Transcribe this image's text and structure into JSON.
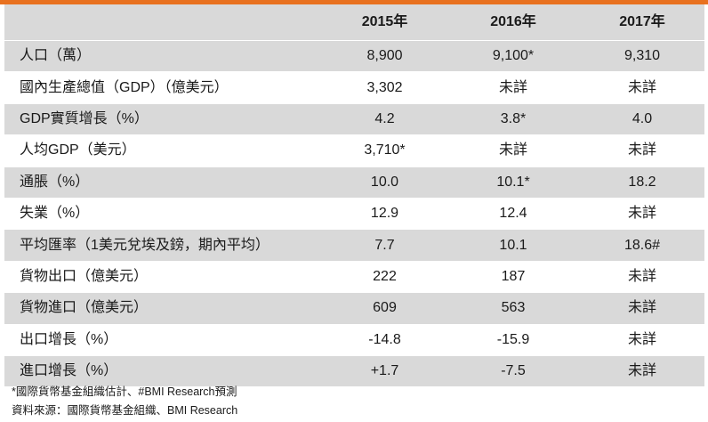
{
  "header": {
    "col1": "2015年",
    "col2": "2016年",
    "col3": "2017年"
  },
  "rows": [
    {
      "label": "人口（萬）",
      "v2015": "8,900",
      "v2016": "9,100*",
      "v2017": "9,310"
    },
    {
      "label": "國內生產總值（GDP）（億美元）",
      "v2015": "3,302",
      "v2016": "未詳",
      "v2017": "未詳"
    },
    {
      "label": "GDP實質增長（%）",
      "v2015": "4.2",
      "v2016": "3.8*",
      "v2017": "4.0"
    },
    {
      "label": "人均GDP（美元）",
      "v2015": "3,710*",
      "v2016": "未詳",
      "v2017": "未詳"
    },
    {
      "label": "通脹（%）",
      "v2015": "10.0",
      "v2016": "10.1*",
      "v2017": "18.2"
    },
    {
      "label": "失業（%）",
      "v2015": "12.9",
      "v2016": "12.4",
      "v2017": "未詳"
    },
    {
      "label": "平均匯率（1美元兌埃及鎊，期內平均）",
      "v2015": "7.7",
      "v2016": "10.1",
      "v2017": "18.6#"
    },
    {
      "label": "貨物出口（億美元）",
      "v2015": "222",
      "v2016": "187",
      "v2017": "未詳"
    },
    {
      "label": "貨物進口（億美元）",
      "v2015": "609",
      "v2016": "563",
      "v2017": "未詳"
    },
    {
      "label": "出口增長（%）",
      "v2015": "-14.8",
      "v2016": "-15.9",
      "v2017": "未詳"
    },
    {
      "label": "進口增長（%）",
      "v2015": "+1.7",
      "v2016": "-7.5",
      "v2017": "未詳"
    }
  ],
  "notes": {
    "estimate_note": "*國際貨幣基金組織估計、#BMI Research預測",
    "source_note": "資料來源：國際貨幣基金組織、BMI Research"
  },
  "colors": {
    "accent_bar": "#e8711f",
    "row_shade": "#d9d9d9",
    "text": "#1a1a1a"
  }
}
